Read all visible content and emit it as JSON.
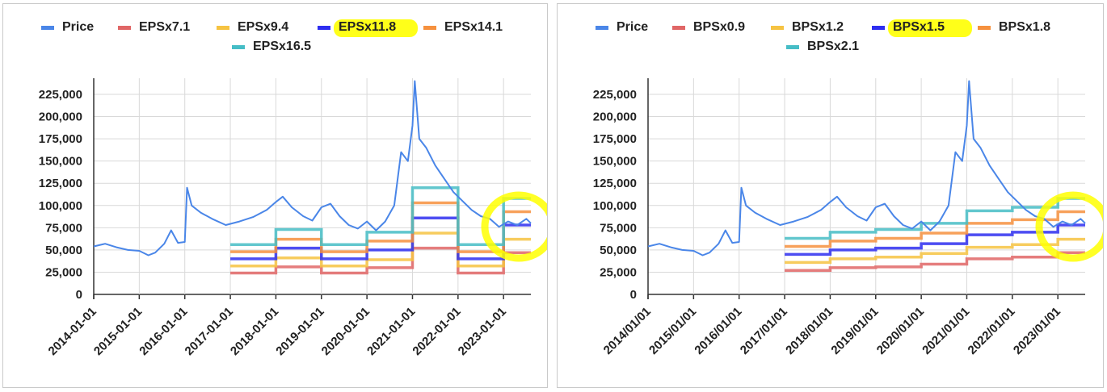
{
  "charts": [
    {
      "legend": [
        {
          "label": "Price",
          "color": "#4a86e8"
        },
        {
          "label": "EPSx7.1",
          "color": "#e06666"
        },
        {
          "label": "EPSx9.4",
          "color": "#f6c342"
        },
        {
          "label": "EPSx11.8",
          "color": "#2e2ef0",
          "highlighted": true
        },
        {
          "label": "EPSx14.1",
          "color": "#f6913e"
        },
        {
          "label": "EPSx16.5",
          "color": "#46bdc6"
        }
      ],
      "x_ticks": [
        "2014-01-01",
        "2015-01-01",
        "2016-01-01",
        "2017-01-01",
        "2018-01-01",
        "2019-01-01",
        "2020-01-01",
        "2021-01-01",
        "2022-01-01",
        "2023-01-01"
      ],
      "y_ticks": [
        "0",
        "25,000",
        "50,000",
        "75,000",
        "100,000",
        "125,000",
        "150,000",
        "175,000",
        "200,000",
        "225,000"
      ]
    },
    {
      "legend": [
        {
          "label": "Price",
          "color": "#4a86e8"
        },
        {
          "label": "BPSx0.9",
          "color": "#e06666"
        },
        {
          "label": "BPSx1.2",
          "color": "#f6c342"
        },
        {
          "label": "BPSx1.5",
          "color": "#2e2ef0",
          "highlighted": true
        },
        {
          "label": "BPSx1.8",
          "color": "#f6913e"
        },
        {
          "label": "BPSx2.1",
          "color": "#46bdc6"
        }
      ],
      "x_ticks": [
        "2014/01/01",
        "2015/01/01",
        "2016/01/01",
        "2017/01/01",
        "2018/01/01",
        "2019/01/01",
        "2020/01/01",
        "2021/01/01",
        "2022/01/01",
        "2023/01/01"
      ],
      "y_ticks": [
        "0",
        "25,000",
        "50,000",
        "75,000",
        "100,000",
        "125,000",
        "150,000",
        "175,000",
        "200,000",
        "225,000"
      ]
    }
  ],
  "chart_data": [
    {
      "type": "line",
      "x_range": [
        2014.0,
        2023.6
      ],
      "ylim": [
        0,
        240000
      ],
      "grid": true,
      "legend_position": "top",
      "annotation_highlight_color": "#ffff00",
      "price": [
        [
          2014.0,
          54000
        ],
        [
          2014.25,
          57000
        ],
        [
          2014.5,
          53000
        ],
        [
          2014.75,
          50000
        ],
        [
          2015.0,
          49000
        ],
        [
          2015.2,
          44000
        ],
        [
          2015.35,
          47000
        ],
        [
          2015.55,
          57000
        ],
        [
          2015.7,
          72000
        ],
        [
          2015.85,
          58000
        ],
        [
          2016.0,
          59000
        ],
        [
          2016.05,
          120000
        ],
        [
          2016.15,
          100000
        ],
        [
          2016.35,
          92000
        ],
        [
          2016.6,
          85000
        ],
        [
          2016.9,
          78000
        ],
        [
          2017.2,
          82000
        ],
        [
          2017.5,
          87000
        ],
        [
          2017.8,
          95000
        ],
        [
          2018.0,
          104000
        ],
        [
          2018.15,
          110000
        ],
        [
          2018.35,
          98000
        ],
        [
          2018.6,
          88000
        ],
        [
          2018.8,
          83000
        ],
        [
          2019.0,
          98000
        ],
        [
          2019.2,
          102000
        ],
        [
          2019.4,
          88000
        ],
        [
          2019.6,
          78000
        ],
        [
          2019.8,
          74000
        ],
        [
          2020.0,
          82000
        ],
        [
          2020.2,
          72000
        ],
        [
          2020.4,
          82000
        ],
        [
          2020.6,
          100000
        ],
        [
          2020.75,
          160000
        ],
        [
          2020.9,
          150000
        ],
        [
          2021.0,
          190000
        ],
        [
          2021.05,
          240000
        ],
        [
          2021.15,
          175000
        ],
        [
          2021.3,
          165000
        ],
        [
          2021.5,
          145000
        ],
        [
          2021.7,
          130000
        ],
        [
          2021.9,
          115000
        ],
        [
          2022.1,
          105000
        ],
        [
          2022.3,
          95000
        ],
        [
          2022.5,
          88000
        ],
        [
          2022.7,
          85000
        ],
        [
          2022.9,
          76000
        ],
        [
          2023.1,
          82000
        ],
        [
          2023.3,
          78000
        ],
        [
          2023.5,
          85000
        ],
        [
          2023.6,
          80000
        ]
      ],
      "series": [
        {
          "name": "EPSx7.1",
          "color": "#e06666",
          "steps": [
            [
              2017.0,
              2018.0,
              24000
            ],
            [
              2018.0,
              2019.0,
              31000
            ],
            [
              2019.0,
              2020.0,
              24000
            ],
            [
              2020.0,
              2021.0,
              30000
            ],
            [
              2021.0,
              2022.0,
              52000
            ],
            [
              2022.0,
              2023.0,
              24000
            ],
            [
              2023.0,
              2023.6,
              47000
            ]
          ]
        },
        {
          "name": "EPSx9.4",
          "color": "#f6c342",
          "steps": [
            [
              2017.0,
              2018.0,
              32000
            ],
            [
              2018.0,
              2019.0,
              41000
            ],
            [
              2019.0,
              2020.0,
              32000
            ],
            [
              2020.0,
              2021.0,
              39000
            ],
            [
              2021.0,
              2022.0,
              69000
            ],
            [
              2022.0,
              2023.0,
              32000
            ],
            [
              2023.0,
              2023.6,
              62000
            ]
          ]
        },
        {
          "name": "EPSx11.8",
          "color": "#2e2ef0",
          "steps": [
            [
              2017.0,
              2018.0,
              40000
            ],
            [
              2018.0,
              2019.0,
              52000
            ],
            [
              2019.0,
              2020.0,
              40000
            ],
            [
              2020.0,
              2021.0,
              50000
            ],
            [
              2021.0,
              2022.0,
              86000
            ],
            [
              2022.0,
              2023.0,
              40000
            ],
            [
              2023.0,
              2023.6,
              78000
            ]
          ]
        },
        {
          "name": "EPSx14.1",
          "color": "#f6913e",
          "steps": [
            [
              2017.0,
              2018.0,
              48000
            ],
            [
              2018.0,
              2019.0,
              62000
            ],
            [
              2019.0,
              2020.0,
              48000
            ],
            [
              2020.0,
              2021.0,
              60000
            ],
            [
              2021.0,
              2022.0,
              103000
            ],
            [
              2022.0,
              2023.0,
              48000
            ],
            [
              2023.0,
              2023.6,
              93000
            ]
          ]
        },
        {
          "name": "EPSx16.5",
          "color": "#46bdc6",
          "steps": [
            [
              2017.0,
              2018.0,
              56000
            ],
            [
              2018.0,
              2019.0,
              73000
            ],
            [
              2019.0,
              2020.0,
              56000
            ],
            [
              2020.0,
              2021.0,
              70000
            ],
            [
              2021.0,
              2022.0,
              120000
            ],
            [
              2022.0,
              2023.0,
              56000
            ],
            [
              2023.0,
              2023.6,
              108000
            ]
          ]
        }
      ]
    },
    {
      "type": "line",
      "x_range": [
        2014.0,
        2023.6
      ],
      "ylim": [
        0,
        240000
      ],
      "grid": true,
      "legend_position": "top",
      "annotation_highlight_color": "#ffff00",
      "price": [
        [
          2014.0,
          54000
        ],
        [
          2014.25,
          57000
        ],
        [
          2014.5,
          53000
        ],
        [
          2014.75,
          50000
        ],
        [
          2015.0,
          49000
        ],
        [
          2015.2,
          44000
        ],
        [
          2015.35,
          47000
        ],
        [
          2015.55,
          57000
        ],
        [
          2015.7,
          72000
        ],
        [
          2015.85,
          58000
        ],
        [
          2016.0,
          59000
        ],
        [
          2016.05,
          120000
        ],
        [
          2016.15,
          100000
        ],
        [
          2016.35,
          92000
        ],
        [
          2016.6,
          85000
        ],
        [
          2016.9,
          78000
        ],
        [
          2017.2,
          82000
        ],
        [
          2017.5,
          87000
        ],
        [
          2017.8,
          95000
        ],
        [
          2018.0,
          104000
        ],
        [
          2018.15,
          110000
        ],
        [
          2018.35,
          98000
        ],
        [
          2018.6,
          88000
        ],
        [
          2018.8,
          83000
        ],
        [
          2019.0,
          98000
        ],
        [
          2019.2,
          102000
        ],
        [
          2019.4,
          88000
        ],
        [
          2019.6,
          78000
        ],
        [
          2019.8,
          74000
        ],
        [
          2020.0,
          82000
        ],
        [
          2020.2,
          72000
        ],
        [
          2020.4,
          82000
        ],
        [
          2020.6,
          100000
        ],
        [
          2020.75,
          160000
        ],
        [
          2020.9,
          150000
        ],
        [
          2021.0,
          190000
        ],
        [
          2021.05,
          240000
        ],
        [
          2021.15,
          175000
        ],
        [
          2021.3,
          165000
        ],
        [
          2021.5,
          145000
        ],
        [
          2021.7,
          130000
        ],
        [
          2021.9,
          115000
        ],
        [
          2022.1,
          105000
        ],
        [
          2022.3,
          95000
        ],
        [
          2022.5,
          88000
        ],
        [
          2022.7,
          85000
        ],
        [
          2022.9,
          76000
        ],
        [
          2023.1,
          82000
        ],
        [
          2023.3,
          78000
        ],
        [
          2023.5,
          85000
        ],
        [
          2023.6,
          80000
        ]
      ],
      "series": [
        {
          "name": "BPSx0.9",
          "color": "#e06666",
          "steps": [
            [
              2017.0,
              2018.0,
              27000
            ],
            [
              2018.0,
              2019.0,
              30000
            ],
            [
              2019.0,
              2020.0,
              31000
            ],
            [
              2020.0,
              2021.0,
              34000
            ],
            [
              2021.0,
              2022.0,
              40000
            ],
            [
              2022.0,
              2023.0,
              42000
            ],
            [
              2023.0,
              2023.6,
              47000
            ]
          ]
        },
        {
          "name": "BPSx1.2",
          "color": "#f6c342",
          "steps": [
            [
              2017.0,
              2018.0,
              36000
            ],
            [
              2018.0,
              2019.0,
              40000
            ],
            [
              2019.0,
              2020.0,
              42000
            ],
            [
              2020.0,
              2021.0,
              46000
            ],
            [
              2021.0,
              2022.0,
              53000
            ],
            [
              2022.0,
              2023.0,
              56000
            ],
            [
              2023.0,
              2023.6,
              62000
            ]
          ]
        },
        {
          "name": "BPSx1.5",
          "color": "#2e2ef0",
          "steps": [
            [
              2017.0,
              2018.0,
              45000
            ],
            [
              2018.0,
              2019.0,
              50000
            ],
            [
              2019.0,
              2020.0,
              52000
            ],
            [
              2020.0,
              2021.0,
              57000
            ],
            [
              2021.0,
              2022.0,
              67000
            ],
            [
              2022.0,
              2023.0,
              70000
            ],
            [
              2023.0,
              2023.6,
              78000
            ]
          ]
        },
        {
          "name": "BPSx1.8",
          "color": "#f6913e",
          "steps": [
            [
              2017.0,
              2018.0,
              54000
            ],
            [
              2018.0,
              2019.0,
              60000
            ],
            [
              2019.0,
              2020.0,
              63000
            ],
            [
              2020.0,
              2021.0,
              69000
            ],
            [
              2021.0,
              2022.0,
              80000
            ],
            [
              2022.0,
              2023.0,
              84000
            ],
            [
              2023.0,
              2023.6,
              93000
            ]
          ]
        },
        {
          "name": "BPSx2.1",
          "color": "#46bdc6",
          "steps": [
            [
              2017.0,
              2018.0,
              63000
            ],
            [
              2018.0,
              2019.0,
              70000
            ],
            [
              2019.0,
              2020.0,
              73000
            ],
            [
              2020.0,
              2021.0,
              80000
            ],
            [
              2021.0,
              2022.0,
              94000
            ],
            [
              2022.0,
              2023.0,
              98000
            ],
            [
              2023.0,
              2023.6,
              108000
            ]
          ]
        }
      ]
    }
  ]
}
